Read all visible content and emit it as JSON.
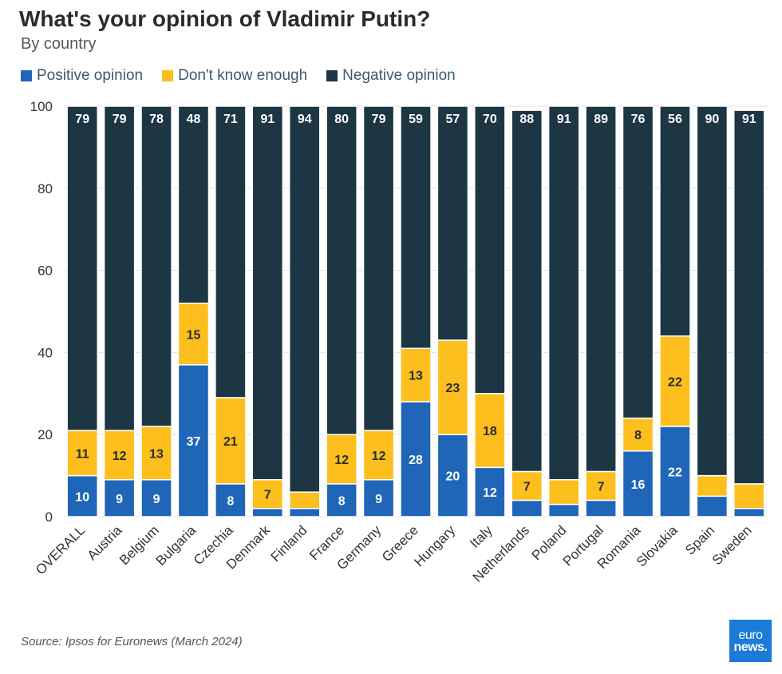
{
  "chart_data": {
    "type": "bar",
    "stacked": true,
    "title": "What's your opinion of Vladimir Putin?",
    "subtitle": "By country",
    "xlabel": "",
    "ylabel": "",
    "ylim": [
      0,
      100
    ],
    "yticks": [
      0,
      20,
      40,
      60,
      80,
      100
    ],
    "grid": true,
    "legend_position": "top-left",
    "categories": [
      "OVERALL",
      "Austria",
      "Belgium",
      "Bulgaria",
      "Czechia",
      "Denmark",
      "Finland",
      "France",
      "Germany",
      "Greece",
      "Hungary",
      "Italy",
      "Netherlands",
      "Poland",
      "Portugal",
      "Romania",
      "Slovakia",
      "Spain",
      "Sweden"
    ],
    "series": [
      {
        "name": "Positive opinion",
        "color": "#1f66b8",
        "values": [
          10,
          9,
          9,
          37,
          8,
          2,
          2,
          8,
          9,
          28,
          20,
          12,
          4,
          3,
          4,
          16,
          22,
          5,
          2
        ],
        "labels": [
          "10",
          "9",
          "9",
          "37",
          "8",
          "",
          "",
          "8",
          "9",
          "28",
          "20",
          "12",
          "",
          "",
          "",
          "16",
          "22",
          "",
          ""
        ]
      },
      {
        "name": "Don't know enough",
        "color": "#fcbf1d",
        "values": [
          11,
          12,
          13,
          15,
          21,
          7,
          4,
          12,
          12,
          13,
          23,
          18,
          7,
          6,
          7,
          8,
          22,
          5,
          6
        ],
        "labels": [
          "11",
          "12",
          "13",
          "15",
          "21",
          "7",
          "",
          "12",
          "12",
          "13",
          "23",
          "18",
          "7",
          "",
          "7",
          "8",
          "22",
          "",
          ""
        ]
      },
      {
        "name": "Negative opinion",
        "color": "#1d3644",
        "values": [
          79,
          79,
          78,
          48,
          71,
          91,
          94,
          80,
          79,
          59,
          57,
          70,
          88,
          91,
          89,
          76,
          56,
          90,
          91
        ],
        "labels": [
          "79",
          "79",
          "78",
          "48",
          "71",
          "91",
          "94",
          "80",
          "79",
          "59",
          "57",
          "70",
          "88",
          "91",
          "89",
          "76",
          "56",
          "90",
          "91"
        ]
      }
    ]
  },
  "source": "Source: Ipsos for Euronews (March 2024)",
  "logo": {
    "line1": "euro",
    "line2": "news."
  }
}
